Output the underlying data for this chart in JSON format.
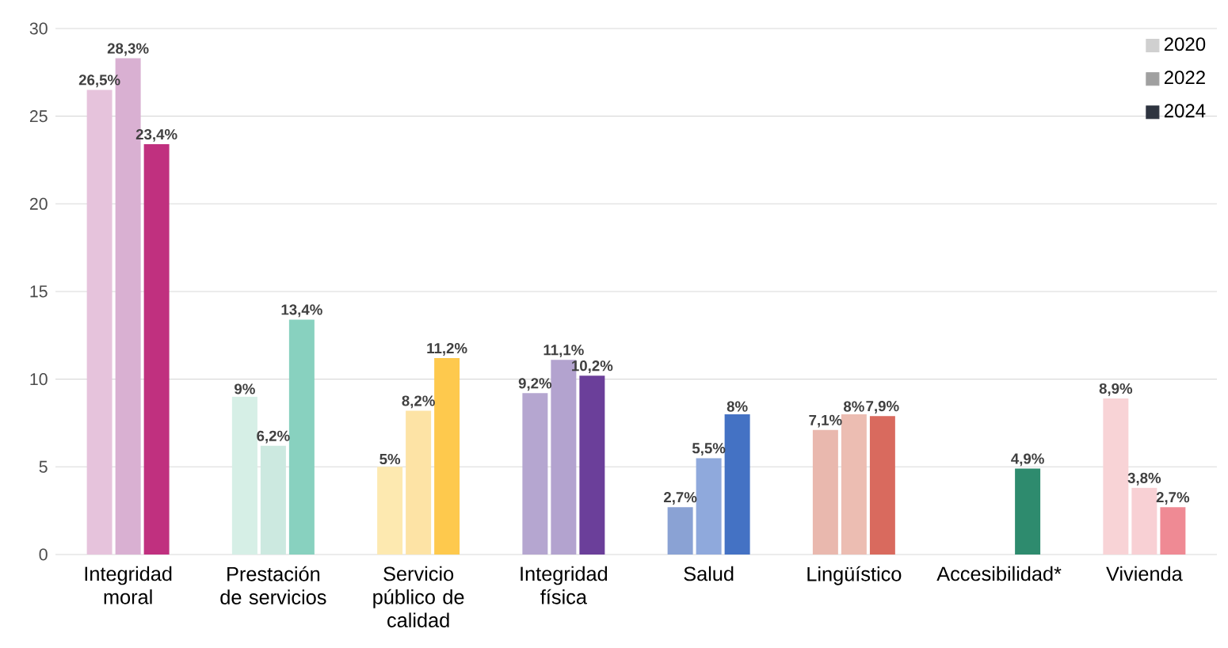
{
  "chart_data": {
    "type": "bar",
    "categories": [
      "Integridad moral",
      "Prestación de servicios",
      "Servicio público de calidad",
      "Integridad física",
      "Salud",
      "Lingüístico",
      "Accesibilidad*",
      "Vivienda"
    ],
    "series": [
      {
        "name": "2020",
        "color": "#d0d0d0",
        "values": [
          26.5,
          9,
          5,
          9.2,
          2.7,
          7.1,
          null,
          8.9
        ],
        "value_labels": [
          "26,5%",
          "9%",
          "5%",
          "9,2%",
          "2,7%",
          "7,1%",
          null,
          "8,9%"
        ],
        "colors": [
          "#e6c3dc",
          "#d6efe6",
          "#fde9b0",
          "#b5a6d0",
          "#8aa2d4",
          "#e9b8ae",
          "#2e8b6e",
          "#f8d3d6"
        ]
      },
      {
        "name": "2022",
        "color": "#a0a0a0",
        "values": [
          28.3,
          6.2,
          8.2,
          11.1,
          5.5,
          8,
          null,
          3.8
        ],
        "value_labels": [
          "28,3%",
          "6,2%",
          "8,2%",
          "11,1%",
          "5,5%",
          "8%",
          null,
          "3,8%"
        ],
        "colors": [
          "#d9b0d2",
          "#cce9e0",
          "#fde3a5",
          "#b3a3cf",
          "#8fa9dc",
          "#ecbdb2",
          "#2e8b6e",
          "#f8d0d4"
        ]
      },
      {
        "name": "2024",
        "color": "#2e3440",
        "values": [
          23.4,
          13.4,
          11.2,
          10.2,
          8,
          7.9,
          4.9,
          2.7
        ],
        "value_labels": [
          "23,4%",
          "13,4%",
          "11,2%",
          "10,2%",
          "8%",
          "7,9%",
          "4,9%",
          "2,7%"
        ],
        "colors": [
          "#c0307f",
          "#88d1bf",
          "#fec94d",
          "#6b3f9a",
          "#4472c4",
          "#d96a5e",
          "#2e8b6e",
          "#ef8a94"
        ]
      }
    ],
    "ylim": [
      0,
      30
    ],
    "yticks": [
      0,
      5,
      10,
      15,
      20,
      25,
      30
    ],
    "grid": "y",
    "legend": "top right"
  }
}
